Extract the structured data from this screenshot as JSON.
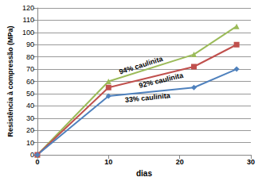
{
  "chart_data": {
    "type": "line",
    "x_label": "dias",
    "y_label": "Resistência à compressão (MPa)",
    "x": [
      0,
      10,
      22,
      28
    ],
    "series": [
      {
        "name": "94% caulinita",
        "color": "#9bbb59",
        "marker": "triangle",
        "values": [
          0,
          60,
          82,
          105
        ]
      },
      {
        "name": "92% caulinita",
        "color": "#c0504d",
        "marker": "square",
        "values": [
          0,
          55,
          72,
          90
        ]
      },
      {
        "name": "33% caulinita",
        "color": "#4f81bd",
        "marker": "diamond",
        "values": [
          0,
          48,
          55,
          70
        ]
      }
    ],
    "xlim": [
      0,
      30
    ],
    "xticks": [
      0,
      10,
      20,
      30
    ],
    "ylim": [
      0,
      120
    ],
    "yticks": [
      0,
      10,
      20,
      30,
      40,
      50,
      60,
      70,
      80,
      90,
      100,
      110,
      120
    ],
    "grid": true
  }
}
